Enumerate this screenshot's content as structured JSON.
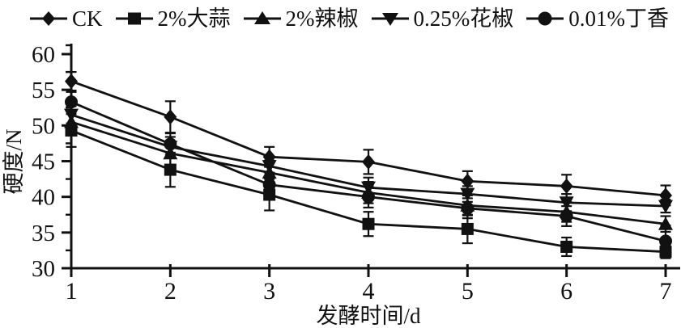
{
  "figure": {
    "background": "#ffffff",
    "ink": "#111111"
  },
  "chart_data": {
    "type": "line",
    "title": "",
    "xlabel": "发酵时间/d",
    "ylabel": "硬度/N",
    "x": [
      1,
      2,
      3,
      4,
      5,
      6,
      7
    ],
    "xlim": [
      1,
      7
    ],
    "ylim": [
      30,
      60
    ],
    "x_ticks": [
      1,
      2,
      3,
      4,
      5,
      6,
      7
    ],
    "y_ticks": [
      30,
      35,
      40,
      45,
      50,
      55,
      60
    ],
    "y_minor_tick_step": 2.5,
    "grid": false,
    "legend_position": "top",
    "error_bars": true,
    "series": [
      {
        "name": "CK",
        "marker": "diamond",
        "values": [
          56.2,
          51.2,
          45.6,
          44.9,
          42.2,
          41.5,
          40.2
        ],
        "errors": [
          1.3,
          2.2,
          1.4,
          1.7,
          1.4,
          1.6,
          1.4
        ]
      },
      {
        "name": "2%大蒜",
        "marker": "square",
        "values": [
          49.3,
          43.8,
          40.3,
          36.2,
          35.5,
          33.0,
          32.3
        ],
        "errors": [
          2.3,
          2.4,
          2.2,
          1.7,
          2.0,
          1.3,
          0.9
        ]
      },
      {
        "name": "2%辣椒",
        "marker": "triangle-up",
        "values": [
          50.5,
          46.1,
          43.4,
          40.6,
          38.8,
          37.9,
          36.2
        ],
        "errors": [
          1.4,
          1.6,
          1.7,
          1.5,
          1.4,
          1.4,
          1.1
        ]
      },
      {
        "name": "0.25%花椒",
        "marker": "triangle-down",
        "values": [
          51.5,
          47.0,
          44.3,
          41.3,
          40.4,
          39.2,
          38.7
        ],
        "errors": [
          1.2,
          1.4,
          1.4,
          1.4,
          1.1,
          1.2,
          0.9
        ]
      },
      {
        "name": "0.01%丁香",
        "marker": "circle",
        "values": [
          53.3,
          47.4,
          41.7,
          40.0,
          38.4,
          37.3,
          33.8
        ],
        "errors": [
          1.4,
          1.5,
          1.7,
          1.5,
          1.4,
          1.4,
          2.2
        ]
      }
    ]
  }
}
